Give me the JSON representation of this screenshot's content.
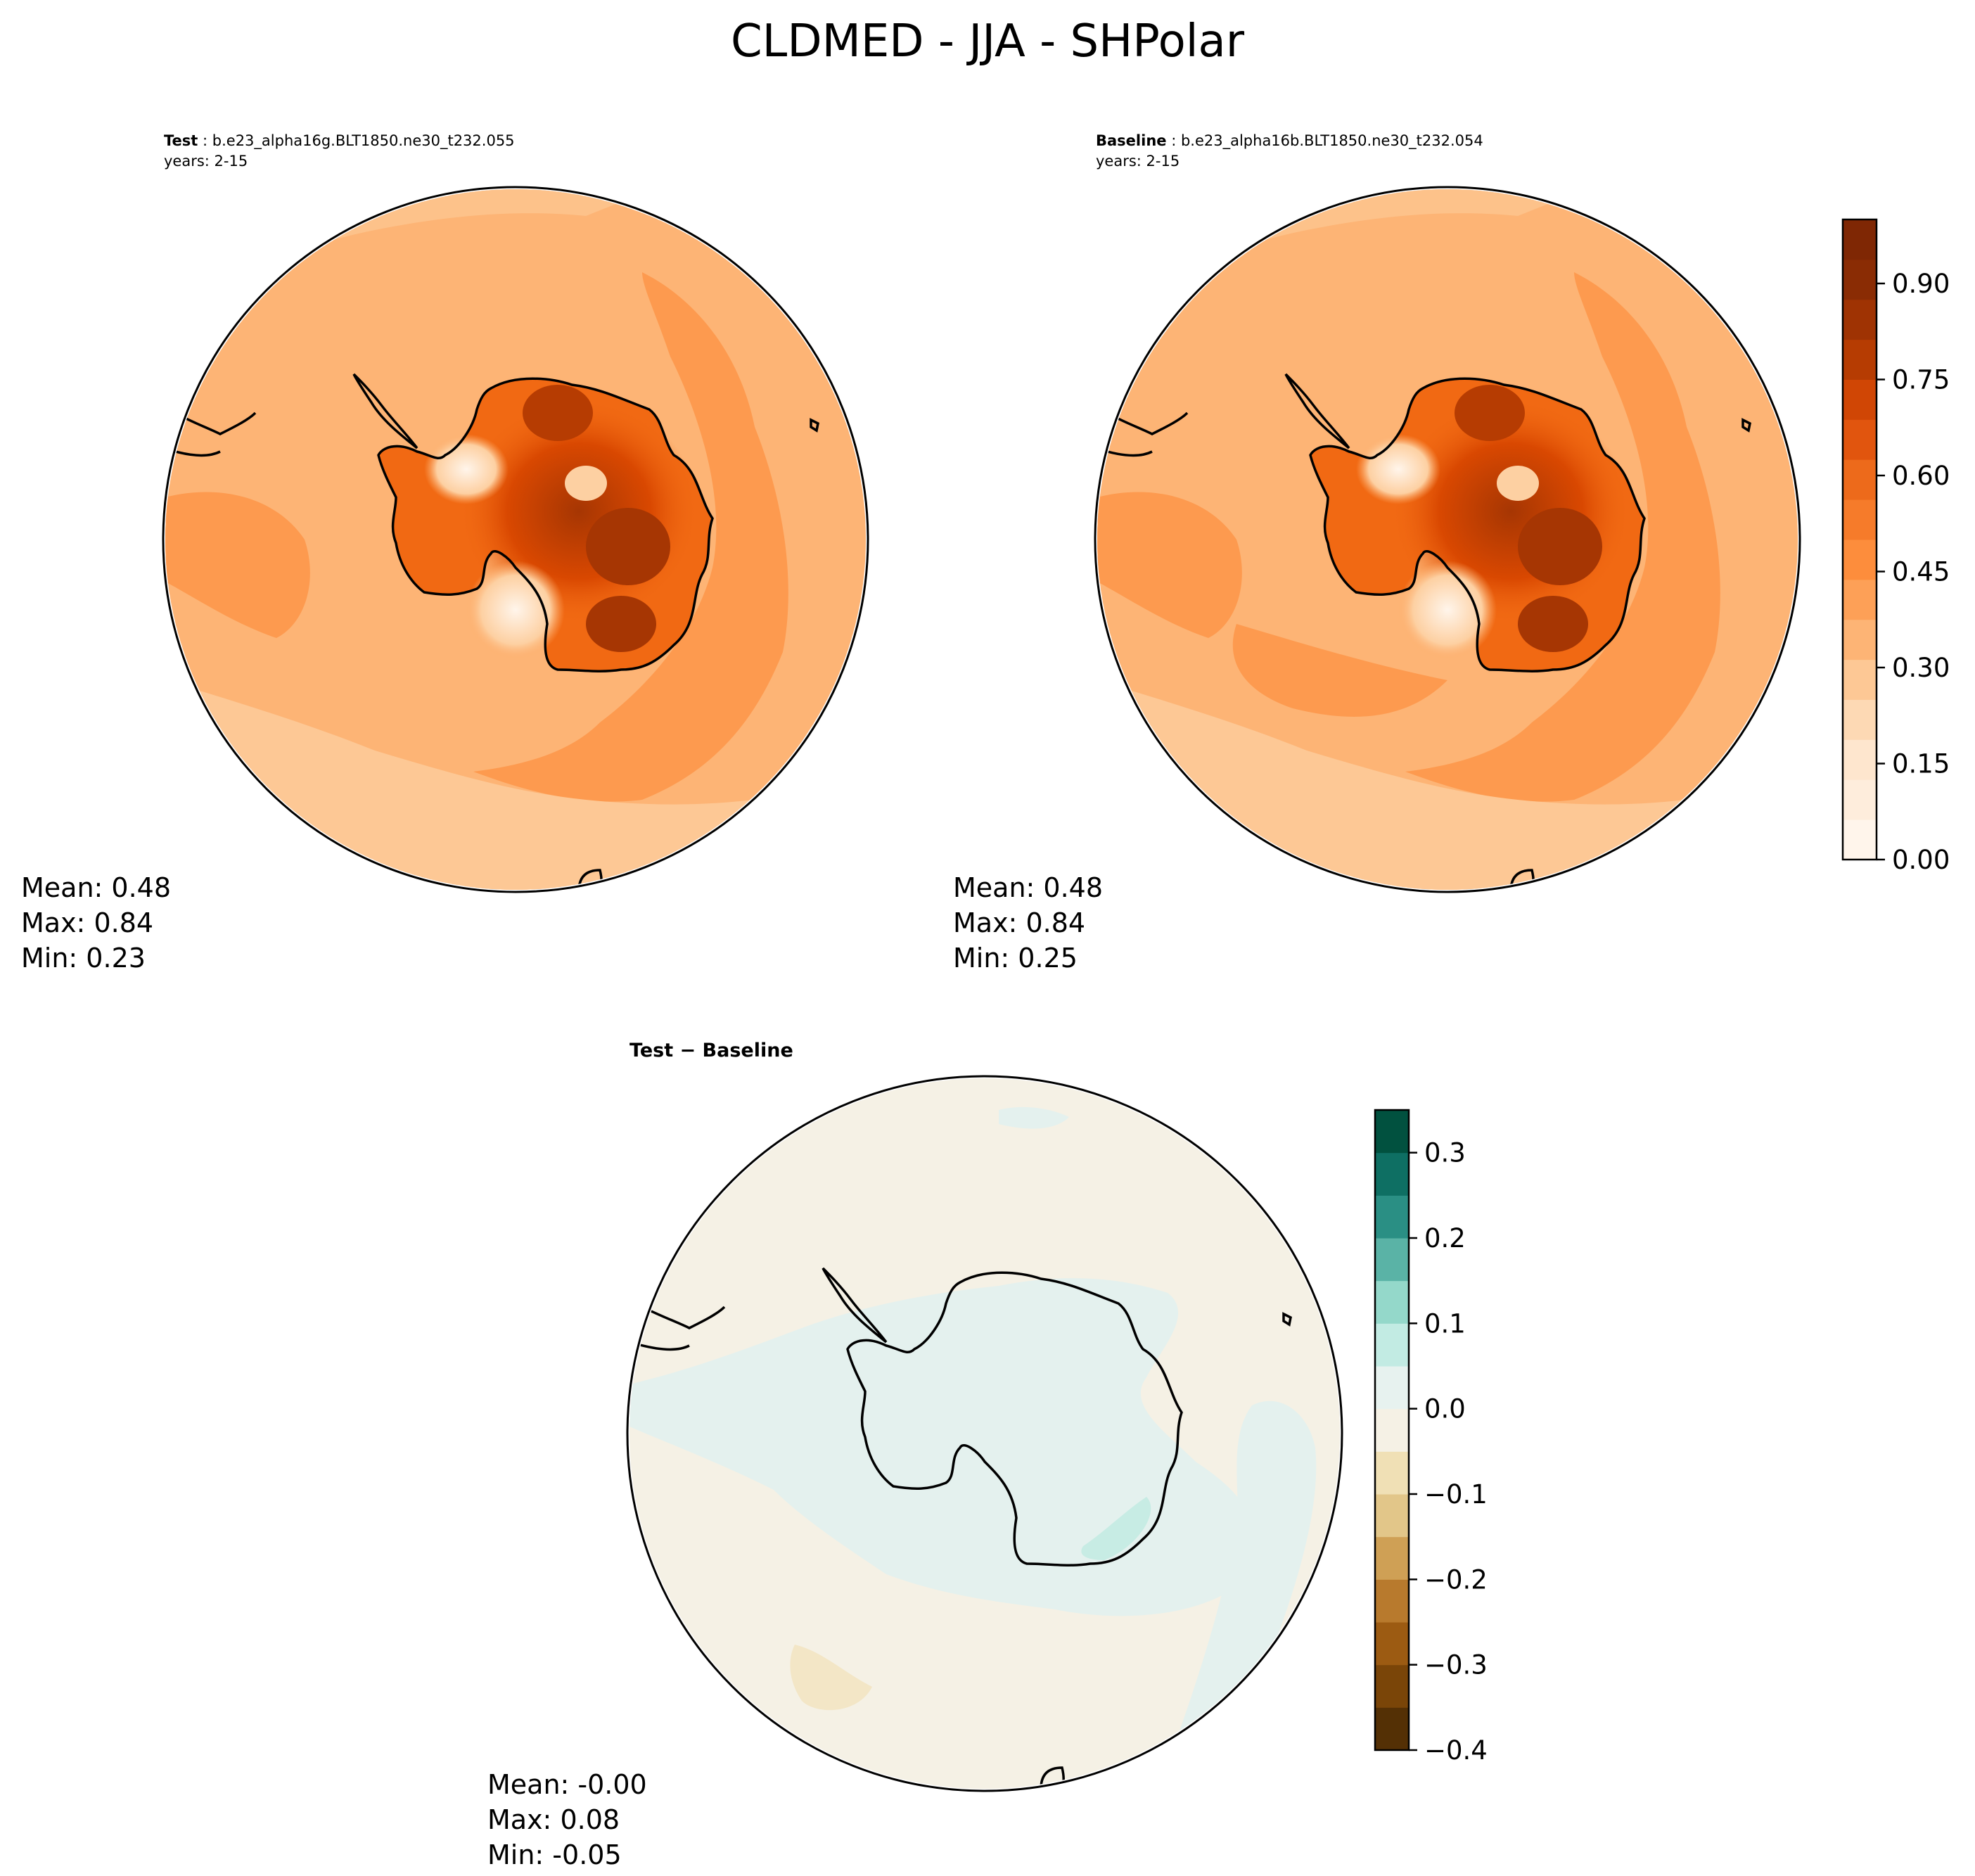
{
  "figure": {
    "title": "CLDMED - JJA - SHPolar"
  },
  "panels": {
    "test": {
      "label": "Test",
      "case": "b.e23_alpha16g.BLT1850.ne30_t232.055",
      "years": "years: 2-15",
      "stats": {
        "mean": "Mean:  0.48",
        "max": "Max:  0.84",
        "min": "Min:  0.23"
      }
    },
    "baseline": {
      "label": "Baseline",
      "case": "b.e23_alpha16b.BLT1850.ne30_t232.054",
      "years": "years: 2-15",
      "stats": {
        "mean": "Mean:  0.48",
        "max": "Max:  0.84",
        "min": "Min:  0.25"
      }
    },
    "diff": {
      "label": "Test − Baseline",
      "stats": {
        "mean": "Mean: -0.00",
        "max": "Max:  0.08",
        "min": "Min: -0.05"
      }
    }
  },
  "colorbars": {
    "field": {
      "ticks": [
        "0.00",
        "0.15",
        "0.30",
        "0.45",
        "0.60",
        "0.75",
        "0.90"
      ],
      "tick_values": [
        0.0,
        0.15,
        0.3,
        0.45,
        0.6,
        0.75,
        0.9
      ],
      "range": [
        0.0,
        1.0
      ],
      "colors": [
        "#fff5eb",
        "#feeddc",
        "#fee6ce",
        "#fdd9b4",
        "#fdc895",
        "#fdb475",
        "#fda057",
        "#fd8d3c",
        "#f67b2a",
        "#ed6a1b",
        "#e1550e",
        "#d04605",
        "#b63c02",
        "#9f3303",
        "#8a2c04",
        "#7f2704"
      ]
    },
    "diff": {
      "ticks": [
        "0.3",
        "0.2",
        "0.1",
        "0.0",
        "−0.1",
        "−0.2",
        "−0.3",
        "−0.4"
      ],
      "tick_values": [
        0.3,
        0.2,
        0.1,
        0.0,
        -0.1,
        -0.2,
        -0.3,
        -0.4
      ],
      "range": [
        -0.4,
        0.35
      ],
      "colors": [
        "#543005",
        "#7a4508",
        "#9c5b12",
        "#b87a2d",
        "#cfa055",
        "#e2c689",
        "#f0e0b5",
        "#f5f1e5",
        "#e7f2ef",
        "#c2ebe3",
        "#94d8ca",
        "#5ab3a6",
        "#2a8f84",
        "#0e6f63",
        "#01513f"
      ]
    }
  },
  "map_fills": {
    "field_base": "#fdae6b",
    "field_ocean_dark": "#fd8d3c",
    "field_land_hi": "#d94801",
    "field_land_low": "#fee6ce",
    "diff_base": "#f5f1e5",
    "diff_pos": "#e4f1ee",
    "diff_pos2": "#c7ece4"
  }
}
